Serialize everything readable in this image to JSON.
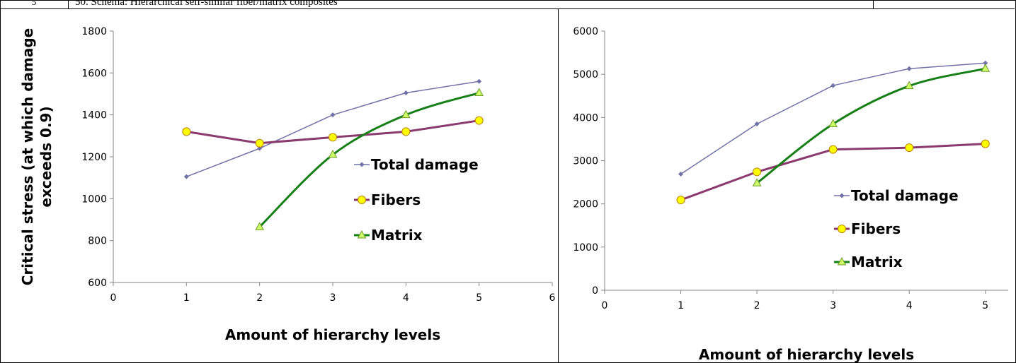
{
  "header": {
    "row_number": "5",
    "row_text": "50. Schema: Hierarchical self-similar fiber/matrix composites"
  },
  "colors": {
    "total_damage": "#7072A8",
    "fibers_line": "#8B3A6E",
    "fibers_marker": "#FFFF00",
    "matrix_line": "#168016",
    "matrix_marker": "#CCFF66",
    "axis": "#868686"
  },
  "chart_data": [
    {
      "type": "line",
      "xlabel": "Amount of hierarchy levels",
      "ylabel_line1": "Critical stress (at which damage",
      "ylabel_line2": "exceeds 0.9)",
      "xlim": [
        0,
        6
      ],
      "ylim": [
        600,
        1800
      ],
      "xticks": [
        "0",
        "1",
        "2",
        "3",
        "4",
        "5",
        "6"
      ],
      "yticks": [
        "600",
        "800",
        "1000",
        "1200",
        "1400",
        "1600",
        "1800"
      ],
      "grid": false,
      "legend_position": "right-middle",
      "series": [
        {
          "name": "Total damage",
          "x": [
            1,
            2,
            3,
            4,
            5
          ],
          "values": [
            1105,
            1240,
            1400,
            1505,
            1560
          ]
        },
        {
          "name": "Fibers",
          "x": [
            1,
            2,
            3,
            4,
            5
          ],
          "values": [
            1320,
            1265,
            1293,
            1320,
            1373
          ]
        },
        {
          "name": "Matrix",
          "x": [
            2,
            3,
            4,
            5
          ],
          "values": [
            865,
            1210,
            1400,
            1505
          ]
        }
      ]
    },
    {
      "type": "line",
      "xlabel": "Amount of hierarchy levels",
      "xlim": [
        0,
        5.3
      ],
      "ylim": [
        0,
        6000
      ],
      "xticks": [
        "0",
        "1",
        "2",
        "3",
        "4",
        "5"
      ],
      "yticks": [
        "0",
        "1000",
        "2000",
        "3000",
        "4000",
        "5000",
        "6000"
      ],
      "grid": false,
      "legend_position": "bottom-right",
      "series": [
        {
          "name": "Total damage",
          "x": [
            1,
            2,
            3,
            4,
            5
          ],
          "values": [
            2690,
            3850,
            4740,
            5130,
            5260
          ]
        },
        {
          "name": "Fibers",
          "x": [
            1,
            2,
            3,
            4,
            5
          ],
          "values": [
            2090,
            2740,
            3260,
            3300,
            3390
          ]
        },
        {
          "name": "Matrix",
          "x": [
            2,
            3,
            4,
            5
          ],
          "values": [
            2480,
            3850,
            4730,
            5130
          ]
        }
      ]
    }
  ]
}
